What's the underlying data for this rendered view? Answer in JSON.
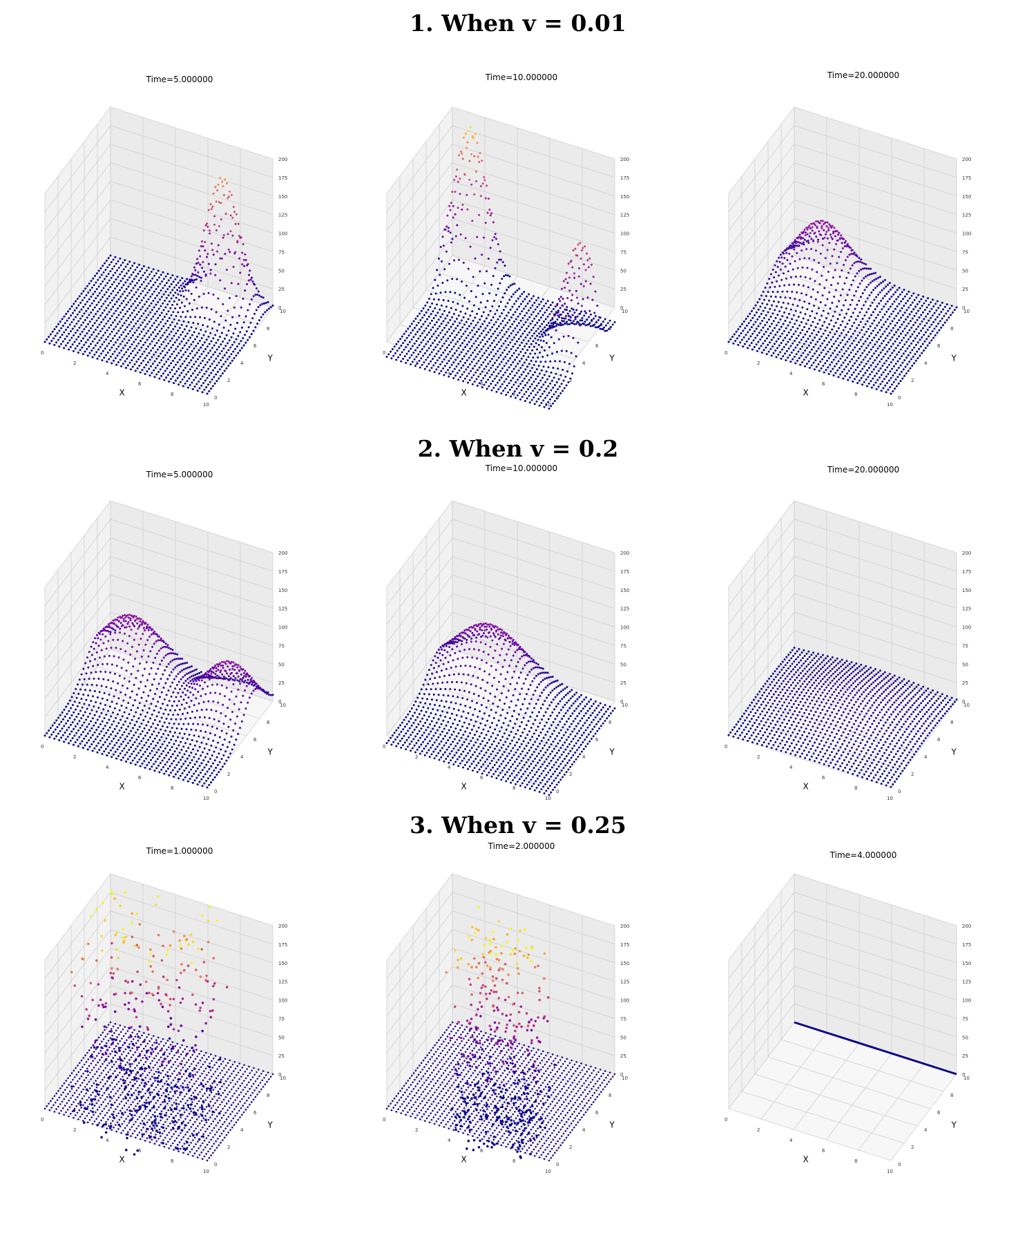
{
  "sections": [
    {
      "title": "1. When v = 0.01"
    },
    {
      "title": "2. When v = 0.2"
    },
    {
      "title": "3. When v = 0.25"
    }
  ],
  "colors": {
    "low": "#0d0887",
    "mid": "#9c179e",
    "high": "#ed7953",
    "top": "#f0f921"
  },
  "chart_data": [
    {
      "type": "scatter",
      "subtype": "3d-surface-scatter",
      "title": "Time=5.000000",
      "xlabel": "X",
      "ylabel": "Y",
      "zlabel": "",
      "xlim": [
        0,
        10
      ],
      "ylim": [
        0,
        10
      ],
      "zlim": [
        0,
        200
      ],
      "xticks": [
        0,
        2,
        4,
        6,
        8,
        10
      ],
      "yticks": [
        0,
        2,
        4,
        6,
        8,
        10
      ],
      "zticks": [
        0,
        25,
        50,
        75,
        100,
        125,
        150,
        175,
        200
      ],
      "colormap": "plasma",
      "surface": {
        "kind": "bump",
        "x0": 7.5,
        "y0": 8.5,
        "sx": 1.0,
        "sy": 1.0,
        "peak": 175,
        "base": 0
      }
    },
    {
      "type": "scatter",
      "subtype": "3d-surface-scatter",
      "title": "Time=10.000000",
      "xlabel": "X",
      "ylabel": "Y",
      "zlabel": "",
      "xlim": [
        0,
        10
      ],
      "ylim": [
        0,
        10
      ],
      "zlim": [
        0,
        200
      ],
      "xticks": [
        0,
        2,
        4,
        6,
        8,
        10
      ],
      "yticks": [
        0,
        2,
        4,
        6,
        8,
        10
      ],
      "zticks": [
        0,
        25,
        50,
        75,
        100,
        125,
        150,
        175,
        200
      ],
      "colormap": "plasma",
      "surface": {
        "kind": "two_bumps",
        "bumps": [
          {
            "x0": 1.5,
            "y0": 9,
            "s": 1.0,
            "peak": 195
          },
          {
            "x0": 9.5,
            "y0": 6,
            "s": 1.0,
            "peak": 130
          }
        ],
        "base": -20
      }
    },
    {
      "type": "scatter",
      "subtype": "3d-surface-scatter",
      "title": "Time=20.000000",
      "xlabel": "X",
      "ylabel": "Y",
      "zlabel": "",
      "xlim": [
        0,
        10
      ],
      "ylim": [
        0,
        10
      ],
      "zlim": [
        0,
        200
      ],
      "xticks": [
        0,
        2,
        4,
        6,
        8,
        10
      ],
      "yticks": [
        0,
        2,
        4,
        6,
        8,
        10
      ],
      "zticks": [
        0,
        25,
        50,
        75,
        100,
        125,
        150,
        175,
        200
      ],
      "colormap": "plasma",
      "surface": {
        "kind": "bump",
        "x0": 2.5,
        "y0": 8,
        "sx": 1.6,
        "sy": 1.6,
        "peak": 85,
        "base": 0
      }
    },
    {
      "type": "scatter",
      "subtype": "3d-surface-scatter",
      "title": "Time=5.000000",
      "xlabel": "X",
      "ylabel": "Y",
      "zlabel": "",
      "xlim": [
        0,
        10
      ],
      "ylim": [
        0,
        10
      ],
      "zlim": [
        0,
        200
      ],
      "xticks": [
        0,
        2,
        4,
        6,
        8,
        10
      ],
      "yticks": [
        0,
        2,
        4,
        6,
        8,
        10
      ],
      "zticks": [
        0,
        25,
        50,
        75,
        100,
        125,
        150,
        175,
        200
      ],
      "colormap": "plasma",
      "surface": {
        "kind": "two_bumps",
        "bumps": [
          {
            "x0": 2,
            "y0": 8,
            "s": 1.8,
            "peak": 80
          },
          {
            "x0": 8.5,
            "y0": 7,
            "s": 1.6,
            "peak": 75
          }
        ],
        "base": 0
      }
    },
    {
      "type": "scatter",
      "subtype": "3d-surface-scatter",
      "title": "Time=10.000000",
      "xlabel": "X",
      "ylabel": "Y",
      "zlabel": "",
      "xlim": [
        0,
        10
      ],
      "ylim": [
        0,
        10
      ],
      "zlim": [
        0,
        200
      ],
      "xticks": [
        0,
        2,
        4,
        6,
        8,
        10
      ],
      "yticks": [
        0,
        2,
        4,
        6,
        8,
        10
      ],
      "zticks": [
        0,
        25,
        50,
        75,
        100,
        125,
        150,
        175,
        200
      ],
      "colormap": "plasma",
      "surface": {
        "kind": "bump",
        "x0": 3,
        "y0": 8,
        "sx": 2.2,
        "sy": 1.8,
        "peak": 75,
        "base": -10
      }
    },
    {
      "type": "scatter",
      "subtype": "3d-surface-scatter",
      "title": "Time=20.000000",
      "xlabel": "X",
      "ylabel": "Y",
      "zlabel": "",
      "xlim": [
        0,
        10
      ],
      "ylim": [
        0,
        10
      ],
      "zlim": [
        0,
        200
      ],
      "xticks": [
        0,
        2,
        4,
        6,
        8,
        10
      ],
      "yticks": [
        0,
        2,
        4,
        6,
        8,
        10
      ],
      "zticks": [
        0,
        25,
        50,
        75,
        100,
        125,
        150,
        175,
        200
      ],
      "colormap": "plasma",
      "surface": {
        "kind": "bump",
        "x0": 5,
        "y0": 6,
        "sx": 3,
        "sy": 3,
        "peak": 20,
        "base": 0
      }
    },
    {
      "type": "scatter",
      "subtype": "3d-surface-scatter",
      "title": "Time=1.000000",
      "xlabel": "X",
      "ylabel": "Y",
      "zlabel": "",
      "xlim": [
        0,
        10
      ],
      "ylim": [
        0,
        10
      ],
      "zlim": [
        0,
        200
      ],
      "xticks": [
        0,
        2,
        4,
        6,
        8,
        10
      ],
      "yticks": [
        0,
        2,
        4,
        6,
        8,
        10
      ],
      "zticks": [
        0,
        25,
        50,
        75,
        100,
        125,
        150,
        175,
        200
      ],
      "colormap": "plasma",
      "surface": {
        "kind": "noisy",
        "x0": 4,
        "y0": 6,
        "spread": 3,
        "base": 0
      }
    },
    {
      "type": "scatter",
      "subtype": "3d-surface-scatter",
      "title": "Time=2.000000",
      "xlabel": "X",
      "ylabel": "Y",
      "zlabel": "",
      "xlim": [
        0,
        10
      ],
      "ylim": [
        0,
        10
      ],
      "zlim": [
        0,
        200
      ],
      "xticks": [
        0,
        2,
        4,
        6,
        8,
        10
      ],
      "yticks": [
        0,
        2,
        4,
        6,
        8,
        10
      ],
      "zticks": [
        0,
        25,
        50,
        75,
        100,
        125,
        150,
        175,
        200
      ],
      "colormap": "plasma",
      "surface": {
        "kind": "noisy",
        "x0": 5,
        "y0": 5,
        "spread": 2,
        "base": 0
      }
    },
    {
      "type": "scatter",
      "subtype": "3d-surface-scatter",
      "title": "Time=4.000000",
      "xlabel": "X",
      "ylabel": "Y",
      "zlabel": "",
      "xlim": [
        0,
        10
      ],
      "ylim": [
        0,
        10
      ],
      "zlim": [
        0,
        200
      ],
      "xticks": [
        0,
        2,
        4,
        6,
        8,
        10
      ],
      "yticks": [
        0,
        2,
        4,
        6,
        8,
        10
      ],
      "zticks": [
        0,
        25,
        50,
        75,
        100,
        125,
        150,
        175,
        200
      ],
      "colormap": "plasma",
      "surface": {
        "kind": "line",
        "y": 10,
        "z": 0
      }
    }
  ]
}
